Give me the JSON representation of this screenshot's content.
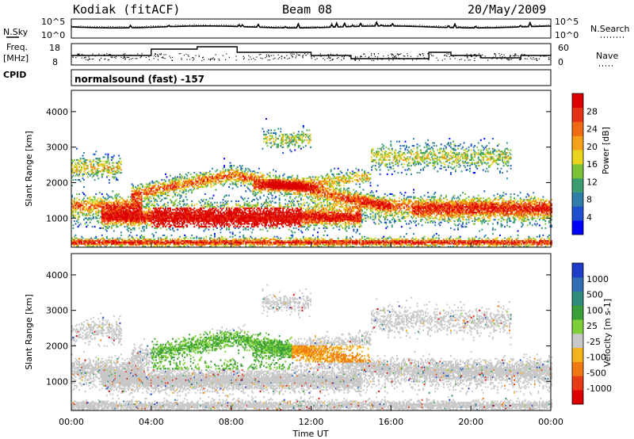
{
  "header": {
    "station": "Kodiak (fitACF)",
    "beam": "Beam 08",
    "date": "20/May/2009"
  },
  "panels": {
    "sky_label": "N.Sky",
    "search_label": "N.Search",
    "freq_label_1": "Freq.",
    "freq_label_2": "[MHz]",
    "nave_label": "Nave",
    "cpid_label": "CPID",
    "cpid_text": "normalsound (fast) -157",
    "sky_ticks": [
      "10^5",
      "10^0"
    ],
    "search_ticks": [
      "10^5",
      "10^0"
    ],
    "freq_ticks": [
      "18",
      "8"
    ],
    "nave_ticks": [
      "60",
      "0"
    ]
  },
  "chart_data": [
    {
      "type": "heatmap",
      "name": "Power",
      "ylabel": "Slant Range [km]",
      "xlabel": "Time UT",
      "ylim": [
        180,
        4600
      ],
      "xlim": [
        0,
        24
      ],
      "yticks": [
        1000,
        2000,
        3000,
        4000
      ],
      "xticks": [
        "00:00",
        "04:00",
        "08:00",
        "12:00",
        "16:00",
        "20:00",
        "00:00"
      ],
      "colorbar": {
        "label": "Power [dB]",
        "ticks": [
          "4",
          "8",
          "12",
          "16",
          "20",
          "24",
          "28"
        ],
        "colors": [
          "#0000ff",
          "#1e4fd0",
          "#2f7ea8",
          "#3c9e70",
          "#7cc33a",
          "#e8d41c",
          "#f5a21a",
          "#f06a12",
          "#e53315",
          "#dd0000"
        ]
      }
    },
    {
      "type": "heatmap",
      "name": "Velocity",
      "ylabel": "Slant Range [km]",
      "xlabel": "Time UT",
      "ylim": [
        180,
        4600
      ],
      "xlim": [
        0,
        24
      ],
      "yticks": [
        1000,
        2000,
        3000,
        4000
      ],
      "xticks": [
        "00:00",
        "04:00",
        "08:00",
        "12:00",
        "16:00",
        "20:00",
        "00:00"
      ],
      "colorbar": {
        "label": "Velocity [m s-1]",
        "ticks": [
          "1000",
          "500",
          "100",
          "25",
          "-25",
          "-100",
          "-500",
          "-1000"
        ],
        "colors": [
          "#1e3cc8",
          "#2f6eb4",
          "#2e8a7a",
          "#3a9e3a",
          "#7fcf3a",
          "#c8c8c8",
          "#f5b21a",
          "#f07a12",
          "#e83a15",
          "#dd0000"
        ]
      }
    }
  ]
}
